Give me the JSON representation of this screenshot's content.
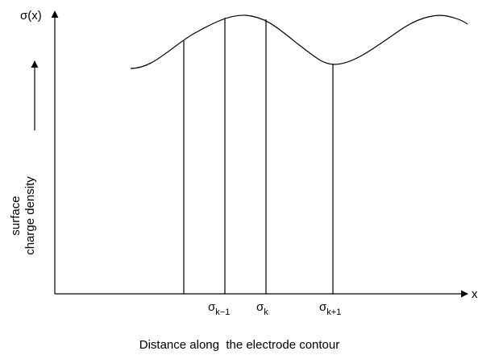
{
  "y_axis_label": "σ(x)",
  "x_axis_label": "x",
  "y_caption": [
    "surface",
    "charge density"
  ],
  "points": [
    {
      "base": "σ",
      "sub": "k−1"
    },
    {
      "base": "σ",
      "sub": "k"
    },
    {
      "base": "σ",
      "sub": "k+1"
    }
  ],
  "caption": "Distance along  the electrode contour"
}
